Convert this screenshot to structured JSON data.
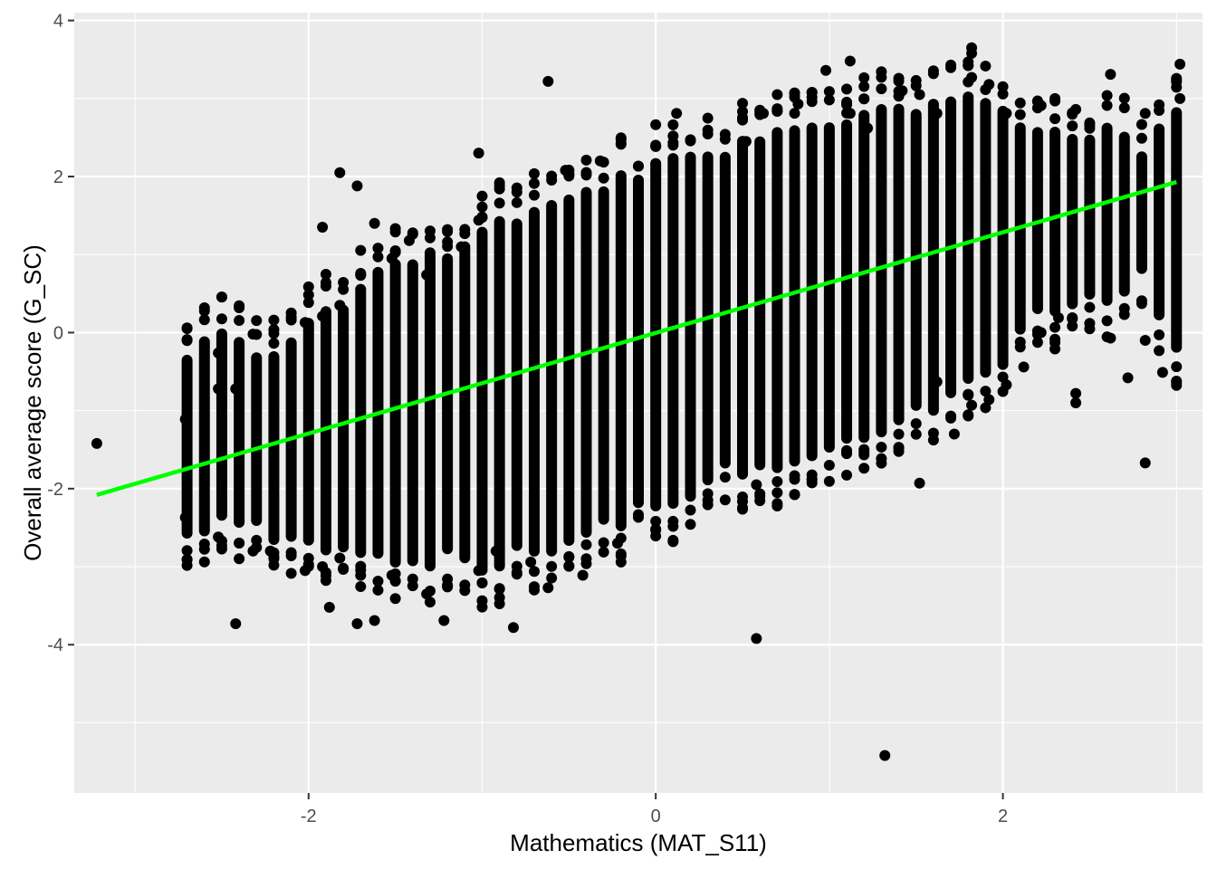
{
  "chart_data": {
    "type": "scatter",
    "title": "",
    "xlabel": "Mathematics (MAT_S11)",
    "ylabel": "Overall average score (G_SC)",
    "xlim": [
      -3.35,
      3.15
    ],
    "ylim": [
      -5.9,
      4.1
    ],
    "x_ticks": [
      -2,
      0,
      2
    ],
    "x_tick_labels": [
      "-2",
      "0",
      "2"
    ],
    "y_ticks": [
      -4,
      -2,
      0,
      2,
      4
    ],
    "y_tick_labels": [
      "-4",
      "-2",
      "0",
      "2",
      "4"
    ],
    "grid": true,
    "legend": "none",
    "colors": {
      "panel": "#ebebeb",
      "grid": "#ffffff",
      "points": "#000000",
      "fit_line": "#00ff00",
      "tick_text": "#4d4d4d",
      "axis_title": "#000000"
    },
    "x_levels_spacing": 0.1,
    "band_summary": [
      {
        "x": -2.7,
        "ymin": -2.6,
        "ymax": -0.3
      },
      {
        "x": -2.5,
        "ymin": -2.2,
        "ymax": -0.1
      },
      {
        "x": -2.2,
        "ymin": -2.5,
        "ymax": -0.4
      },
      {
        "x": -2.0,
        "ymin": -2.6,
        "ymax": 0.1
      },
      {
        "x": -1.8,
        "ymin": -2.6,
        "ymax": 0.2
      },
      {
        "x": -1.6,
        "ymin": -2.7,
        "ymax": 0.7
      },
      {
        "x": -1.4,
        "ymin": -2.8,
        "ymax": 0.8
      },
      {
        "x": -1.2,
        "ymin": -2.8,
        "ymax": 1.0
      },
      {
        "x": -1.0,
        "ymin": -2.9,
        "ymax": 1.2
      },
      {
        "x": -0.8,
        "ymin": -2.7,
        "ymax": 1.4
      },
      {
        "x": -0.6,
        "ymin": -2.6,
        "ymax": 1.5
      },
      {
        "x": -0.4,
        "ymin": -2.4,
        "ymax": 1.7
      },
      {
        "x": -0.2,
        "ymin": -2.3,
        "ymax": 1.9
      },
      {
        "x": 0.0,
        "ymin": -2.1,
        "ymax": 2.1
      },
      {
        "x": 0.2,
        "ymin": -2.0,
        "ymax": 2.2
      },
      {
        "x": 0.4,
        "ymin": -1.7,
        "ymax": 2.3
      },
      {
        "x": 0.6,
        "ymin": -1.6,
        "ymax": 2.4
      },
      {
        "x": 0.8,
        "ymin": -1.5,
        "ymax": 2.5
      },
      {
        "x": 1.0,
        "ymin": -1.4,
        "ymax": 2.6
      },
      {
        "x": 1.2,
        "ymin": -1.2,
        "ymax": 2.7
      },
      {
        "x": 1.4,
        "ymin": -1.0,
        "ymax": 2.8
      },
      {
        "x": 1.6,
        "ymin": -0.8,
        "ymax": 2.8
      },
      {
        "x": 1.8,
        "ymin": -0.4,
        "ymax": 2.9
      },
      {
        "x": 2.0,
        "ymin": -0.2,
        "ymax": 2.7
      },
      {
        "x": 2.2,
        "ymin": 0.3,
        "ymax": 2.6
      },
      {
        "x": 2.4,
        "ymin": 0.5,
        "ymax": 2.4
      },
      {
        "x": 2.6,
        "ymin": 0.6,
        "ymax": 2.5
      },
      {
        "x": 2.8,
        "ymin": 0.8,
        "ymax": 2.3
      },
      {
        "x": 3.0,
        "ymin": 0.0,
        "ymax": 2.7
      }
    ],
    "outlier_points": [
      [
        -3.22,
        -1.42
      ],
      [
        -2.71,
        -1.11
      ],
      [
        -2.71,
        -2.37
      ],
      [
        -2.52,
        -0.26
      ],
      [
        -2.52,
        -2.62
      ],
      [
        -2.42,
        -3.73
      ],
      [
        -2.32,
        -0.02
      ],
      [
        -2.32,
        -2.8
      ],
      [
        -2.22,
        -2.8
      ],
      [
        -2.02,
        -3.05
      ],
      [
        -1.92,
        -3.0
      ],
      [
        -1.92,
        1.35
      ],
      [
        -1.88,
        -3.52
      ],
      [
        -1.82,
        -2.89
      ],
      [
        -1.72,
        -3.73
      ],
      [
        -1.62,
        -3.69
      ],
      [
        -1.52,
        -3.11
      ],
      [
        -1.32,
        -3.35
      ],
      [
        -1.22,
        -3.69
      ],
      [
        -1.02,
        -3.05
      ],
      [
        -0.92,
        -2.8
      ],
      [
        -0.82,
        -3.78
      ],
      [
        -0.72,
        -2.94
      ],
      [
        -0.62,
        -3.27
      ],
      [
        -0.42,
        -3.11
      ],
      [
        -0.22,
        -2.7
      ],
      [
        -1.82,
        2.05
      ],
      [
        -1.72,
        1.88
      ],
      [
        -1.62,
        1.4
      ],
      [
        -1.42,
        1.18
      ],
      [
        -1.02,
        2.3
      ],
      [
        -1.02,
        1.44
      ],
      [
        -0.62,
        3.22
      ],
      [
        -0.52,
        2.08
      ],
      [
        -0.32,
        2.2
      ],
      [
        0.12,
        2.81
      ],
      [
        0.52,
        2.45
      ],
      [
        0.62,
        2.81
      ],
      [
        0.82,
        2.93
      ],
      [
        0.98,
        3.36
      ],
      [
        1.12,
        3.48
      ],
      [
        1.12,
        2.81
      ],
      [
        1.22,
        2.62
      ],
      [
        1.32,
        -5.42
      ],
      [
        1.42,
        3.1
      ],
      [
        1.52,
        3.05
      ],
      [
        1.62,
        2.81
      ],
      [
        1.82,
        3.65
      ],
      [
        1.82,
        3.58
      ],
      [
        1.82,
        3.27
      ],
      [
        1.92,
        3.18
      ],
      [
        2.02,
        2.81
      ],
      [
        2.22,
        2.91
      ],
      [
        2.42,
        2.86
      ],
      [
        2.62,
        3.31
      ],
      [
        2.82,
        2.81
      ],
      [
        3.02,
        3.44
      ],
      [
        3.02,
        3.0
      ],
      [
        0.58,
        -3.92
      ],
      [
        0.58,
        -1.95
      ],
      [
        2.42,
        -0.78
      ],
      [
        2.42,
        -0.9
      ],
      [
        2.82,
        -1.67
      ],
      [
        2.92,
        -0.51
      ],
      [
        2.72,
        -0.58
      ],
      [
        2.62,
        -0.07
      ],
      [
        2.82,
        -0.1
      ],
      [
        1.52,
        -1.93
      ],
      [
        1.62,
        -0.63
      ],
      [
        1.72,
        -1.3
      ],
      [
        1.82,
        -0.93
      ],
      [
        1.92,
        -0.86
      ],
      [
        2.02,
        -0.67
      ],
      [
        2.12,
        -0.44
      ],
      [
        2.22,
        0.0
      ],
      [
        2.32,
        0.19
      ],
      [
        -2.52,
        -0.72
      ],
      [
        -2.42,
        -0.72
      ],
      [
        -2.02,
        0.13
      ],
      [
        -1.92,
        0.21
      ],
      [
        -1.82,
        0.35
      ],
      [
        -1.52,
        0.95
      ],
      [
        -1.32,
        0.74
      ],
      [
        -1.12,
        1.1
      ]
    ],
    "fit_line": {
      "x": [
        -3.22,
        3.0
      ],
      "y": [
        -2.08,
        1.93
      ]
    }
  }
}
